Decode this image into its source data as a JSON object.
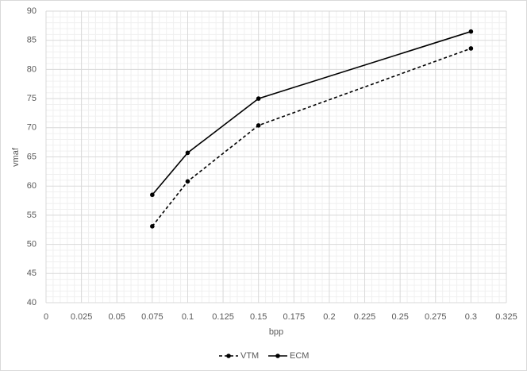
{
  "chart_data": {
    "type": "line",
    "x_label": "bpp",
    "y_label": "vmaf",
    "xlim": [
      0,
      0.325
    ],
    "xticks": [
      0,
      0.025,
      0.05,
      0.075,
      0.1,
      0.125,
      0.15,
      0.175,
      0.2,
      0.225,
      0.25,
      0.275,
      0.3,
      0.325
    ],
    "ylim": [
      40,
      90
    ],
    "yticks": [
      40,
      45,
      50,
      55,
      60,
      65,
      70,
      75,
      80,
      85,
      90
    ],
    "grid": true,
    "minor_grid": true,
    "legend": "bottom",
    "series": [
      {
        "name": "VTM",
        "color": "#000000",
        "line_style": "dashed",
        "x": [
          0.075,
          0.1,
          0.15,
          0.3
        ],
        "values": [
          53.1,
          60.8,
          70.4,
          83.6
        ]
      },
      {
        "name": "ECM",
        "color": "#000000",
        "line_style": "solid",
        "x": [
          0.075,
          0.1,
          0.15,
          0.3
        ],
        "values": [
          58.5,
          65.7,
          75.0,
          86.5
        ]
      }
    ]
  }
}
